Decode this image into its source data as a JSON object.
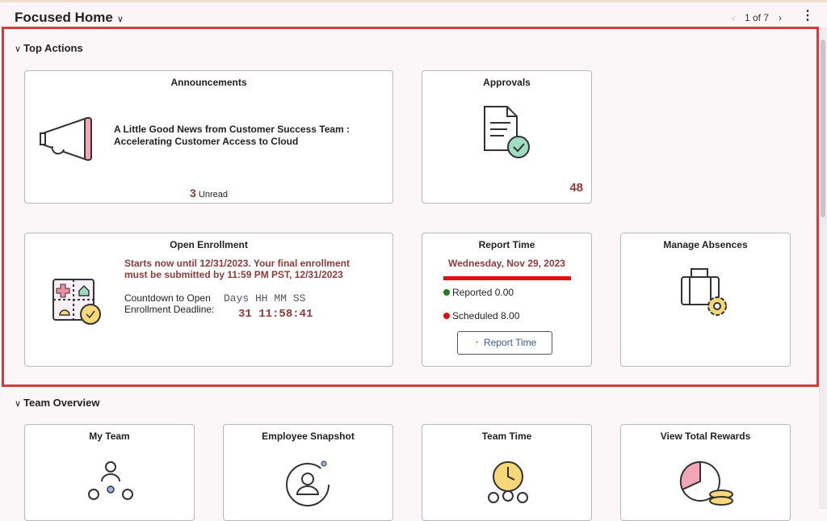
{
  "header": {
    "title": "Focused Home",
    "pager": "1 of 7",
    "prev": "‹",
    "next": "›",
    "more": "⋮"
  },
  "sections": [
    {
      "label": "Top Actions"
    },
    {
      "label": "Team Overview"
    }
  ],
  "announcements": {
    "title": "Announcements",
    "headline1": "A Little Good News from Customer Success Team :",
    "headline2": "Accelerating Customer Access to Cloud",
    "unread_count": "3",
    "unread_label": "Unread"
  },
  "approvals": {
    "title": "Approvals",
    "count": "48"
  },
  "open_enrollment": {
    "title": "Open Enrollment",
    "message1": "Starts now until 12/31/2023. Your final enrollment",
    "message2": "must be submitted by 11:59 PM PST, 12/31/2023",
    "countdown_label": "Countdown to Open Enrollment Deadline:",
    "units": "Days HH MM SS",
    "days": "31",
    "time": "11:58:41"
  },
  "report_time": {
    "title": "Report Time",
    "date": "Wednesday, Nov 29, 2023",
    "reported": "Reported 0.00",
    "scheduled": "Scheduled 8.00",
    "button": "Report Time",
    "progress_fraction": 0,
    "colors": {
      "reported": "#1e7d1e",
      "scheduled": "#e01010"
    }
  },
  "manage_absences": {
    "title": "Manage Absences"
  },
  "team": [
    {
      "title": "My Team"
    },
    {
      "title": "Employee Snapshot"
    },
    {
      "title": "Team Time"
    },
    {
      "title": "View Total Rewards"
    }
  ]
}
